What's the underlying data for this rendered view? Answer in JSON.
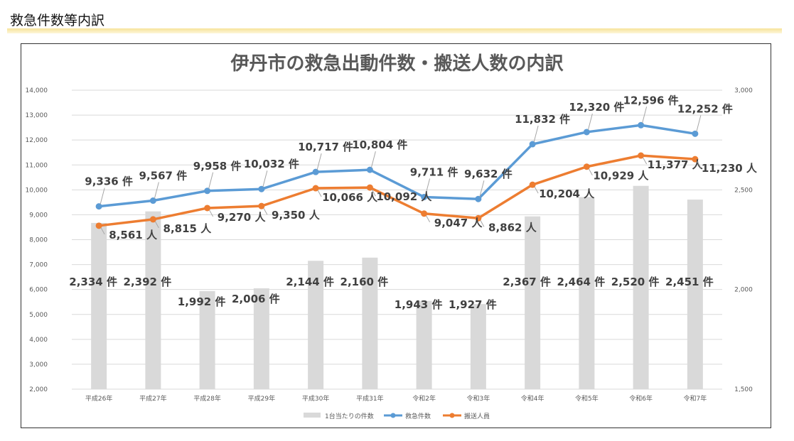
{
  "page": {
    "heading": "救急件数等内訳"
  },
  "chart_data": {
    "type": "combo-bar-line",
    "title": "伊丹市の救急出動件数・搬送人数の内訳",
    "categories": [
      "平成26年",
      "平成27年",
      "平成28年",
      "平成29年",
      "平成30年",
      "平成31年",
      "令和2年",
      "令和3年",
      "令和4年",
      "令和5年",
      "令和6年",
      "令和7年"
    ],
    "left_axis": {
      "ylim": [
        2000,
        14000
      ],
      "ticks": [
        "2,000",
        "3,000",
        "4,000",
        "5,000",
        "6,000",
        "7,000",
        "8,000",
        "9,000",
        "10,000",
        "11,000",
        "12,000",
        "13,000",
        "14,000"
      ]
    },
    "right_axis": {
      "ylim": [
        1500,
        3000
      ],
      "ticks": [
        "1,500",
        "2,000",
        "2,500",
        "3,000"
      ]
    },
    "series": [
      {
        "name": "1台当たりの件数",
        "kind": "bar",
        "axis": "right",
        "color": "#d9d9d9",
        "values": [
          2334,
          2392,
          1992,
          2006,
          2144,
          2160,
          1943,
          1927,
          2367,
          2464,
          2520,
          2451
        ],
        "labels": [
          "2,334 件",
          "2,392 件",
          "1,992 件",
          "2,006 件",
          "2,144 件",
          "2,160 件",
          "1,943 件",
          "1,927 件",
          "2,367 件",
          "2,464 件",
          "2,520 件",
          "2,451 件"
        ]
      },
      {
        "name": "救急件数",
        "kind": "line",
        "axis": "left",
        "color": "#5b9bd5",
        "values": [
          9336,
          9567,
          9958,
          10032,
          10717,
          10804,
          9711,
          9632,
          11832,
          12320,
          12596,
          12252
        ],
        "labels": [
          "9,336 件",
          "9,567 件",
          "9,958 件",
          "10,032 件",
          "10,717 件",
          "10,804 件",
          "9,711 件",
          "9,632 件",
          "11,832 件",
          "12,320 件",
          "12,596 件",
          "12,252 件"
        ]
      },
      {
        "name": "搬送人員",
        "kind": "line",
        "axis": "left",
        "color": "#ed7d31",
        "values": [
          8561,
          8815,
          9270,
          9350,
          10066,
          10092,
          9047,
          8862,
          10204,
          10929,
          11377,
          11230
        ],
        "labels": [
          "8,561 人",
          "8,815 人",
          "9,270 人",
          "9,350 人",
          "10,066 人",
          "10,092 人",
          "9,047 人",
          "8,862 人",
          "10,204 人",
          "10,929 人",
          "11,377 人",
          "11,230 人"
        ]
      }
    ]
  }
}
